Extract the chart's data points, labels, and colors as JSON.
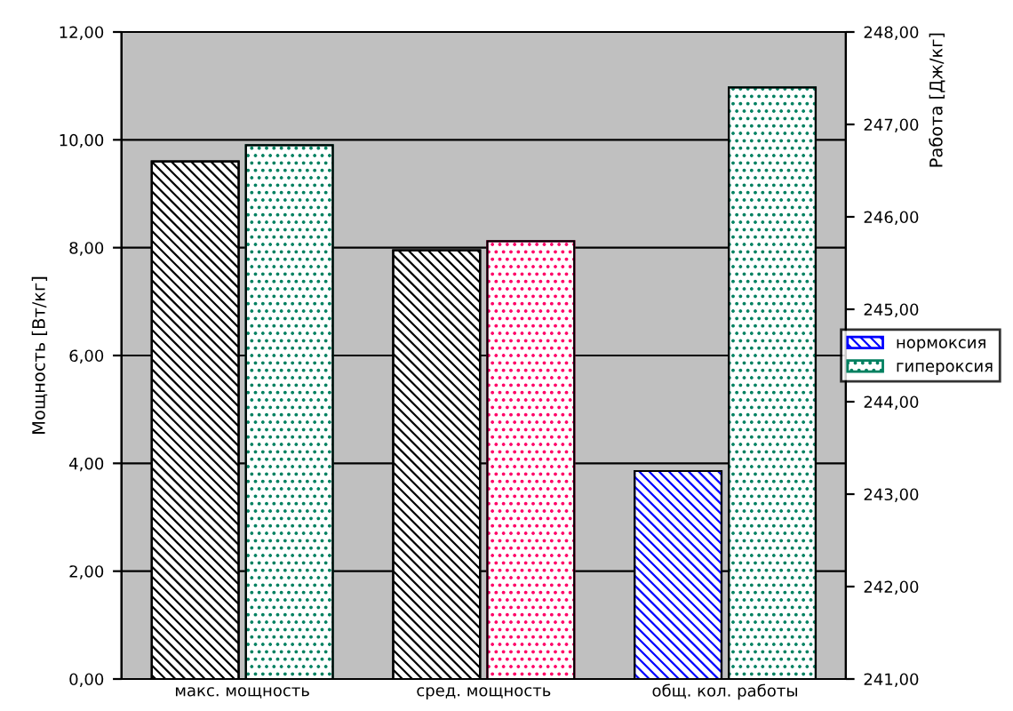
{
  "chart_data": {
    "type": "bar",
    "ylabel": "Мощность [Вт/кг]",
    "y2label": "Работа [Дж/кг]",
    "categories": [
      "макс. мощность",
      "сред. мощность",
      "общ. кол. работы"
    ],
    "series": [
      {
        "color": "#000000",
        "values": [
          9.6,
          7.95,
          null
        ]
      },
      {
        "colors": [
          "#008060",
          "#ff0066",
          null
        ],
        "values": [
          9.9,
          8.12,
          null
        ]
      },
      {
        "name": "нормоксия",
        "color": "#0000ff",
        "axis": "y2",
        "values": [
          null,
          null,
          243.25
        ]
      },
      {
        "name": "гипероксия",
        "color": "#008060",
        "axis": "y2",
        "values": [
          null,
          null,
          247.4
        ]
      }
    ],
    "ylim": [
      0,
      12
    ],
    "yticks": [
      {
        "value": 0,
        "label": "0,00"
      },
      {
        "value": 2,
        "label": "2,00"
      },
      {
        "value": 4,
        "label": "4,00"
      },
      {
        "value": 6,
        "label": "6,00"
      },
      {
        "value": 8,
        "label": "8,00"
      },
      {
        "value": 10,
        "label": "10,00"
      },
      {
        "value": 12,
        "label": "12,00"
      }
    ],
    "y2lim": [
      241,
      248
    ],
    "y2ticks": [
      {
        "value": 241,
        "label": "241,00"
      },
      {
        "value": 242,
        "label": "242,00"
      },
      {
        "value": 243,
        "label": "243,00"
      },
      {
        "value": 244,
        "label": "244,00"
      },
      {
        "value": 245,
        "label": "245,00"
      },
      {
        "value": 246,
        "label": "246,00"
      },
      {
        "value": 247,
        "label": "247,00"
      },
      {
        "value": 248,
        "label": "248,00"
      }
    ],
    "grid": "y",
    "legend": "right"
  }
}
